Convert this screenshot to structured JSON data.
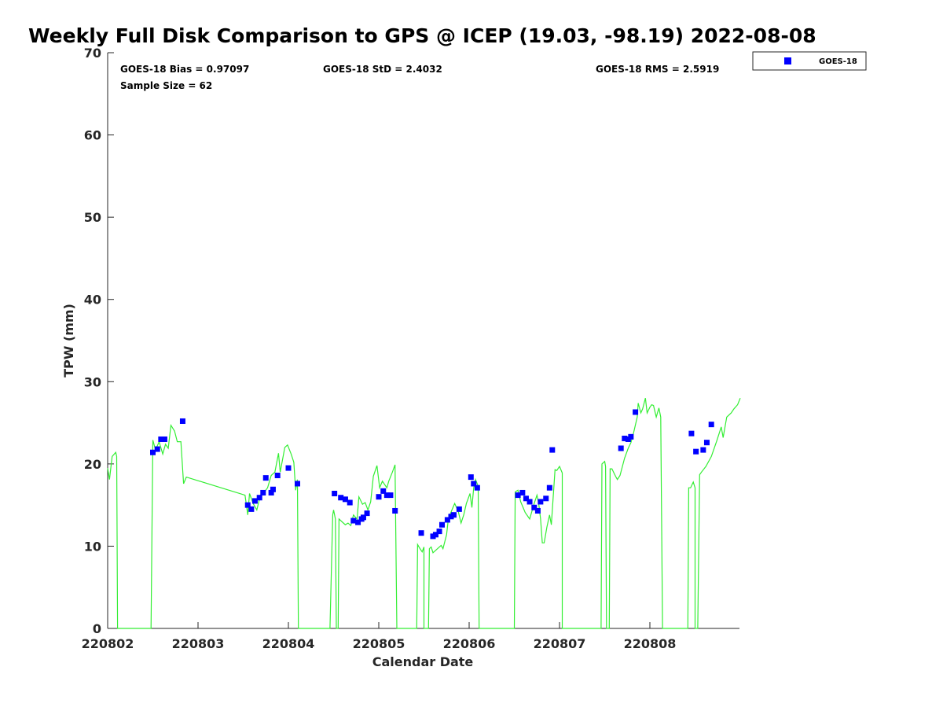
{
  "chart_data": {
    "type": "scatter",
    "title": "Weekly Full Disk Comparison to GPS @ ICEP (19.03, -98.19) 2022-08-08",
    "xlabel": "Calendar Date",
    "ylabel": "TPW (mm)",
    "xlim": [
      2,
      9
    ],
    "ylim": [
      0,
      70
    ],
    "x_unit": "day of August 2022",
    "xticks": [
      2,
      3,
      4,
      5,
      6,
      7,
      8
    ],
    "xtick_labels": [
      "220802",
      "220803",
      "220804",
      "220805",
      "220806",
      "220807",
      "220808"
    ],
    "yticks": [
      0,
      10,
      20,
      30,
      40,
      50,
      60,
      70
    ],
    "ytick_labels": [
      "0",
      "10",
      "20",
      "30",
      "40",
      "50",
      "60",
      "70"
    ],
    "grid": false,
    "legend_position": "outside-top-right",
    "legend": [
      "GOES-18"
    ],
    "stats": {
      "bias": "GOES-18 Bias = 0.97097",
      "std": "GOES-18 StD = 2.4032",
      "rms": "GOES-18 RMS = 2.5919",
      "sample": "Sample Size = 62"
    },
    "colors": {
      "goes": "#0000ff",
      "gps": "#33ee33"
    },
    "series": [
      {
        "name": "GOES-18",
        "kind": "scatter",
        "x": [
          2.5,
          2.55,
          2.59,
          2.63,
          2.83,
          3.55,
          3.59,
          3.63,
          3.68,
          3.72,
          3.75,
          3.81,
          3.83,
          3.88,
          4.0,
          4.1,
          4.51,
          4.58,
          4.63,
          4.68,
          4.72,
          4.77,
          4.81,
          4.83,
          4.87,
          5.0,
          5.05,
          5.09,
          5.13,
          5.18,
          5.47,
          5.6,
          5.63,
          5.67,
          5.7,
          5.76,
          5.8,
          5.83,
          5.89,
          6.02,
          6.05,
          6.09,
          6.54,
          6.59,
          6.63,
          6.67,
          6.72,
          6.76,
          6.79,
          6.85,
          6.89,
          6.92,
          7.68,
          7.72,
          7.76,
          7.79,
          7.84,
          8.46,
          8.51,
          8.59,
          8.63,
          8.68
        ],
        "y": [
          21.4,
          21.8,
          23.0,
          23.0,
          25.2,
          15.0,
          14.5,
          15.5,
          15.9,
          16.5,
          18.3,
          16.5,
          16.9,
          18.6,
          19.5,
          17.6,
          16.4,
          15.9,
          15.7,
          15.3,
          13.1,
          12.9,
          13.3,
          13.5,
          14.0,
          16.0,
          16.7,
          16.2,
          16.2,
          14.3,
          11.6,
          11.2,
          11.4,
          11.8,
          12.6,
          13.2,
          13.6,
          13.8,
          14.5,
          18.4,
          17.6,
          17.1,
          16.2,
          16.5,
          15.8,
          15.4,
          14.7,
          14.3,
          15.4,
          15.8,
          17.1,
          21.7,
          21.9,
          23.1,
          23.0,
          23.3,
          26.3,
          23.7,
          21.5,
          21.7,
          22.6,
          24.8
        ]
      },
      {
        "name": "",
        "kind": "line",
        "x": [
          2.0,
          2.02,
          2.05,
          2.09,
          2.1,
          2.11,
          2.48,
          2.5,
          2.53,
          2.57,
          2.61,
          2.64,
          2.67,
          2.7,
          2.74,
          2.77,
          2.81,
          2.84,
          2.87,
          3.52,
          3.55,
          3.57,
          3.61,
          3.65,
          3.69,
          3.72,
          3.77,
          3.81,
          3.85,
          3.89,
          3.91,
          3.96,
          3.99,
          4.03,
          4.06,
          4.08,
          4.1,
          4.11,
          4.46,
          4.49,
          4.5,
          4.52,
          4.53,
          4.55,
          4.56,
          4.63,
          4.66,
          4.69,
          4.72,
          4.76,
          4.78,
          4.82,
          4.85,
          4.88,
          4.91,
          4.94,
          4.98,
          5.01,
          5.04,
          5.09,
          5.11,
          5.15,
          5.18,
          5.2,
          5.42,
          5.43,
          5.45,
          5.48,
          5.5,
          5.5,
          5.55,
          5.56,
          5.58,
          5.6,
          5.65,
          5.69,
          5.71,
          5.75,
          5.77,
          5.81,
          5.84,
          5.88,
          5.91,
          5.94,
          5.97,
          6.01,
          6.03,
          6.05,
          6.07,
          6.1,
          6.11,
          6.5,
          6.51,
          6.54,
          6.57,
          6.62,
          6.67,
          6.72,
          6.75,
          6.77,
          6.79,
          6.81,
          6.83,
          6.86,
          6.89,
          6.91,
          6.95,
          6.97,
          7.0,
          7.03,
          7.03,
          7.46,
          7.47,
          7.5,
          7.51,
          7.52,
          7.55,
          7.56,
          7.58,
          7.62,
          7.64,
          7.67,
          7.72,
          7.76,
          7.79,
          7.82,
          7.86,
          7.87,
          7.9,
          7.92,
          7.95,
          7.97,
          8.0,
          8.02,
          8.04,
          8.07,
          8.1,
          8.12,
          8.14,
          8.42,
          8.43,
          8.45,
          8.48,
          8.5,
          8.5,
          8.53,
          8.55,
          8.57,
          8.62,
          8.68,
          8.74,
          8.79,
          8.81,
          8.85,
          8.9,
          8.93,
          8.97,
          9.0
        ],
        "y": [
          19.5,
          18.1,
          20.9,
          21.4,
          20.9,
          0,
          0,
          22.9,
          21.7,
          22.7,
          21.2,
          22.4,
          21.9,
          24.7,
          24.0,
          22.7,
          22.7,
          17.6,
          18.4,
          16.2,
          13.8,
          16.4,
          15.2,
          14.4,
          16.2,
          16.4,
          17.1,
          18.6,
          19.0,
          21.3,
          19.0,
          22.0,
          22.3,
          21.2,
          20.2,
          16.8,
          18.1,
          0,
          0,
          13.8,
          14.4,
          13.3,
          0,
          0,
          13.3,
          12.6,
          12.8,
          12.5,
          13.8,
          13.3,
          16.0,
          15.1,
          15.3,
          14.4,
          15.4,
          18.5,
          19.8,
          17.1,
          17.9,
          17.1,
          17.9,
          19.0,
          19.9,
          0,
          0,
          10.2,
          9.8,
          9.3,
          9.9,
          0,
          0,
          9.7,
          9.9,
          9.2,
          9.7,
          10.1,
          9.7,
          11.4,
          13.3,
          14.4,
          15.2,
          14.2,
          12.8,
          13.8,
          15.2,
          16.4,
          14.7,
          17.1,
          18.1,
          17.3,
          0,
          0,
          16.6,
          16.8,
          15.4,
          14.1,
          13.3,
          15.2,
          16.2,
          15.2,
          13.3,
          10.4,
          10.4,
          12.3,
          13.8,
          12.6,
          19.3,
          19.2,
          19.7,
          18.9,
          0,
          0,
          20.0,
          20.3,
          19.7,
          0,
          0,
          19.4,
          19.4,
          18.5,
          18.1,
          18.6,
          20.7,
          21.9,
          22.6,
          23.8,
          25.7,
          27.4,
          26.2,
          26.7,
          28.0,
          26.2,
          26.9,
          27.2,
          27.1,
          25.7,
          26.8,
          25.7,
          0,
          0,
          17.1,
          17.1,
          17.8,
          17.1,
          0,
          0,
          18.7,
          19.0,
          19.7,
          20.9,
          22.8,
          24.5,
          23.2,
          25.7,
          26.2,
          26.7,
          27.2,
          28.0
        ]
      }
    ]
  }
}
